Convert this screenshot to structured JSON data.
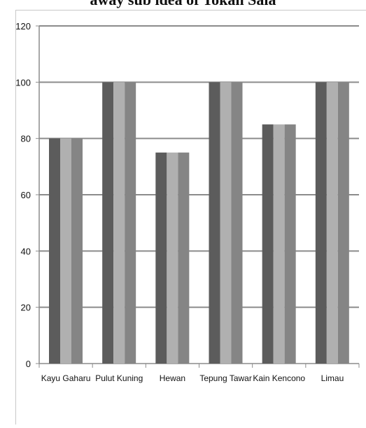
{
  "caption": "away sub idea of Tokan Sala",
  "chart_data": {
    "type": "bar",
    "categories": [
      "Kayu Gaharu",
      "Pulut Kuning",
      "Hewan",
      "Tepung Tawar",
      "Kain Kencono",
      "Limau"
    ],
    "series": [
      {
        "values": [
          80,
          100,
          75,
          100,
          85,
          100
        ]
      },
      {
        "values": [
          80,
          100,
          75,
          100,
          85,
          100
        ]
      },
      {
        "values": [
          80,
          100,
          75,
          100,
          85,
          100
        ]
      }
    ],
    "ylim": [
      0,
      120
    ],
    "yticks": [
      0,
      20,
      40,
      60,
      80,
      100,
      120
    ],
    "grid": true,
    "colors": [
      "#5c5c5c",
      "#b0b0b0",
      "#858585"
    ],
    "gridline_color": "#8c8c8c"
  }
}
